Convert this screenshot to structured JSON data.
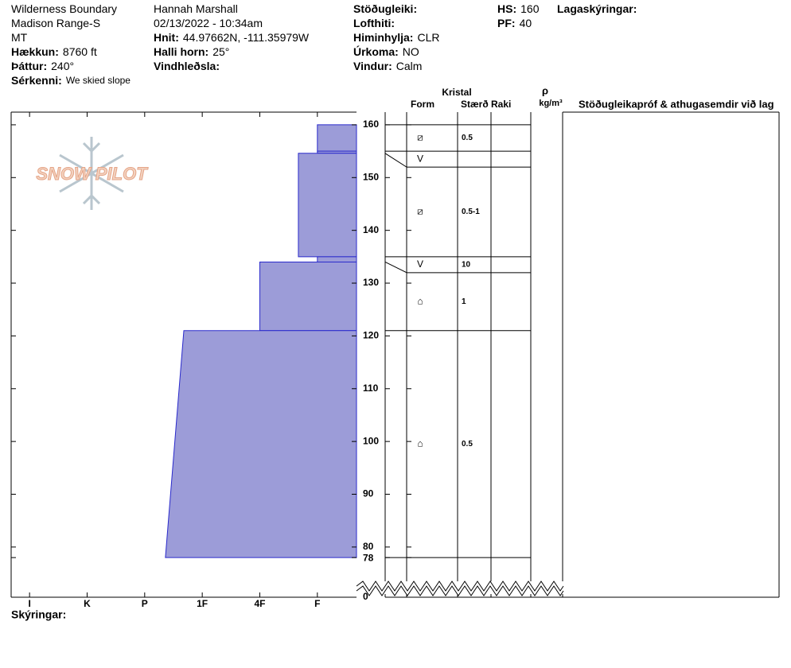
{
  "header": {
    "columns": [
      [
        {
          "value": "Wilderness Boundary"
        },
        {
          "value": "Madison Range-S"
        },
        {
          "value": "MT"
        },
        {
          "label": "Hækkun:",
          "value": "8760 ft"
        },
        {
          "label": "Þáttur:",
          "value": "240°"
        },
        {
          "label": "Sérkenni:",
          "value": "We skied slope"
        }
      ],
      [
        {
          "value": "Hannah Marshall"
        },
        {
          "value": "02/13/2022 - 10:34am"
        },
        {
          "label": "Hnit:",
          "value": "44.97662N, -111.35979W"
        },
        {
          "label": "Halli horn:",
          "value": "25°"
        },
        {
          "label": "Vindhleðsla:"
        }
      ],
      [
        {
          "label": "Stöðugleiki:"
        },
        {
          "label": "Lofthiti:"
        },
        {
          "label": "Himinhylja:",
          "value": "CLR"
        },
        {
          "label": "Úrkoma:",
          "value": "NO"
        },
        {
          "label": "Vindur:",
          "value": "Calm"
        }
      ],
      [
        {
          "label": "HS:",
          "value": "160"
        },
        {
          "label": "PF:",
          "value": "40"
        }
      ],
      [
        {
          "label": "Lagaskýringar:"
        }
      ]
    ]
  },
  "logo": "SNOW PILOT",
  "legend_label": "Skýringar:",
  "table_headers": {
    "crystal": "Kristal",
    "form": "Form",
    "size": "Stærð",
    "moisture": "Raki",
    "density_symbol": "ρ",
    "density_unit": "kg/m³",
    "stability": "Stöðugleikapróf & athugasemdir við lag"
  },
  "profile": {
    "depth_lim": [
      72.9,
      162.4
    ],
    "depth_ticks": [
      80,
      90,
      100,
      110,
      120,
      130,
      140,
      150,
      160,
      78
    ],
    "ground_label": 0,
    "hardness_lim": [
      0.32,
      6.32
    ],
    "hardness_reversed": true,
    "hardness_ticks": [
      {
        "value": 6,
        "label": "I"
      },
      {
        "value": 5,
        "label": "K"
      },
      {
        "value": 4,
        "label": "P"
      },
      {
        "value": 3,
        "label": "1F"
      },
      {
        "value": 2,
        "label": "4F"
      },
      {
        "value": 1,
        "label": "F"
      }
    ],
    "color": "#9c9cd8",
    "layers": [
      {
        "top": 160,
        "bottom": 155,
        "hardness_top": 1,
        "hardness_bottom": 1,
        "form": "⧄",
        "size": "0.5"
      },
      {
        "top": 155,
        "bottom": 154.6,
        "hardness_top": 1,
        "hardness_bottom": 1,
        "form": "V"
      },
      {
        "top": 154.6,
        "bottom": 135,
        "hardness_top": 1.33,
        "hardness_bottom": 1.33,
        "form": "⧄",
        "size": "0.5-1"
      },
      {
        "top": 135,
        "bottom": 134,
        "hardness_top": 1,
        "hardness_bottom": 1,
        "form": "V",
        "size": "10"
      },
      {
        "top": 134,
        "bottom": 121,
        "hardness_top": 2,
        "hardness_bottom": 2,
        "form": "⌂",
        "size": "1"
      },
      {
        "top": 121,
        "bottom": 78,
        "hardness_top": 3.32,
        "hardness_bottom": 3.64,
        "form": "⌂",
        "size": "0.5"
      }
    ]
  }
}
